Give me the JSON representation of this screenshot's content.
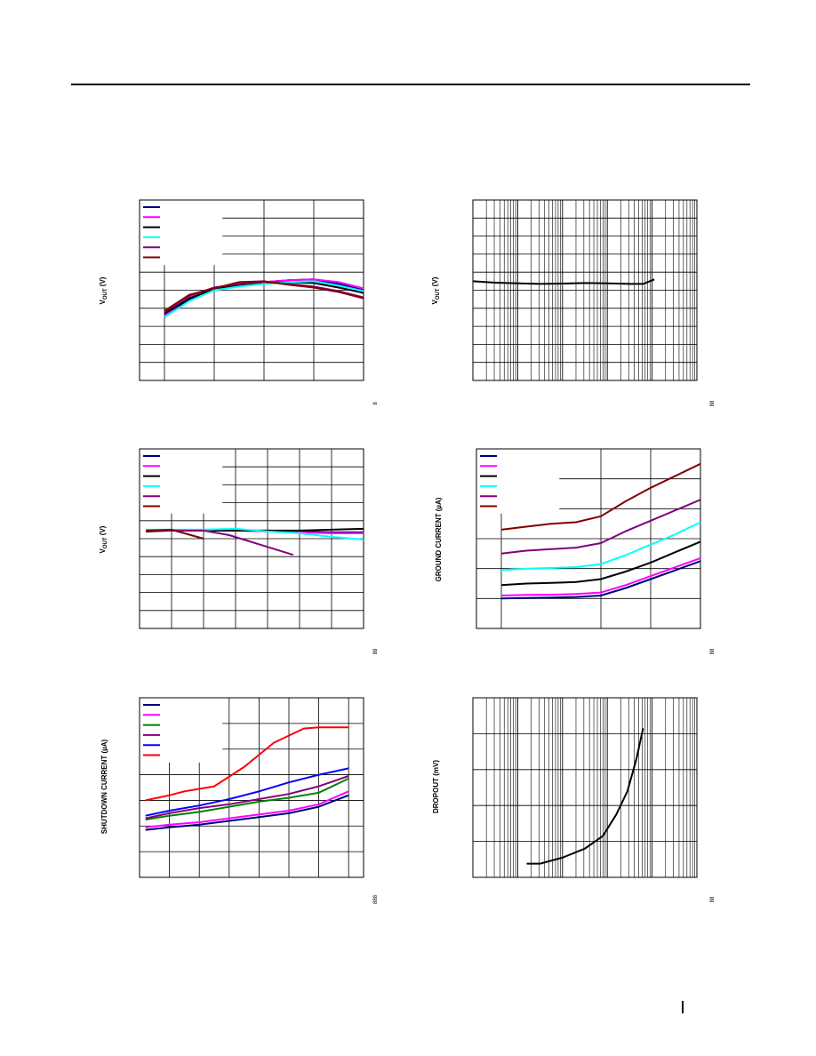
{
  "page": {
    "header_rule": true
  },
  "chart_data": [
    {
      "id": "c1",
      "type": "line",
      "title": "",
      "xlabel": "",
      "ylabel": "VOUT (V)",
      "ylabel_main": "V",
      "ylabel_sub": "OUT",
      "ylabel_unit": " (V)",
      "corner_note": "8",
      "xlim": [
        0,
        4.5
      ],
      "ylim": [
        0,
        10
      ],
      "grid": true,
      "x_scale": "linear",
      "xticks": [
        0.5,
        1.5,
        2.5,
        3.5,
        4.5
      ],
      "yticks": [
        1,
        2,
        3,
        4,
        5,
        6,
        7,
        8,
        9
      ],
      "legend_position": "top-left",
      "series": [
        {
          "name": "",
          "color": "#000080",
          "x": [
            0.5,
            1,
            1.5,
            2,
            2.5,
            3,
            3.5,
            4,
            4.5
          ],
          "y": [
            3.5,
            4.5,
            5.1,
            5.3,
            5.45,
            5.55,
            5.6,
            5.35,
            5.0
          ]
        },
        {
          "name": "",
          "color": "#ff00ff",
          "x": [
            0.5,
            1,
            1.5,
            2,
            2.5,
            3,
            3.5,
            4,
            4.5
          ],
          "y": [
            3.6,
            4.6,
            5.15,
            5.35,
            5.45,
            5.55,
            5.6,
            5.45,
            5.1
          ]
        },
        {
          "name": "",
          "color": "#000000",
          "x": [
            0.5,
            1,
            1.5,
            2,
            2.5,
            3,
            3.5,
            4,
            4.5
          ],
          "y": [
            3.7,
            4.55,
            5.05,
            5.3,
            5.4,
            5.45,
            5.4,
            5.15,
            4.85
          ]
        },
        {
          "name": "",
          "color": "#00ffff",
          "x": [
            0.5,
            1,
            1.5,
            2,
            2.5,
            3,
            3.5,
            4,
            4.5
          ],
          "y": [
            3.5,
            4.4,
            5.0,
            5.2,
            5.35,
            5.45,
            5.5,
            5.25,
            4.95
          ]
        },
        {
          "name": "",
          "color": "#800080",
          "x": [
            0.5,
            1,
            1.5,
            2,
            2.5,
            3,
            3.5,
            4,
            4.5
          ],
          "y": [
            3.8,
            4.7,
            5.15,
            5.35,
            5.45,
            5.35,
            5.2,
            4.95,
            4.6
          ]
        },
        {
          "name": "",
          "color": "#800000",
          "x": [
            0.5,
            1,
            1.5,
            2,
            2.5,
            3,
            3.5,
            4,
            4.5
          ],
          "y": [
            3.85,
            4.75,
            5.1,
            5.45,
            5.5,
            5.3,
            5.15,
            4.9,
            4.55
          ]
        }
      ]
    },
    {
      "id": "c2",
      "type": "line",
      "title": "",
      "xlabel": "",
      "ylabel": "VOUT (V)",
      "ylabel_main": "V",
      "ylabel_sub": "OUT",
      "ylabel_unit": " (V)",
      "corner_note": "88",
      "xlim": [
        0,
        5
      ],
      "ylim": [
        0,
        10
      ],
      "grid": true,
      "x_scale": "log",
      "legend_position": "",
      "series": [
        {
          "name": "",
          "color": "#000000",
          "x": [
            0,
            0.5,
            1,
            1.5,
            2,
            2.5,
            3,
            3.5,
            3.8,
            4.05
          ],
          "y": [
            5.5,
            5.42,
            5.38,
            5.35,
            5.37,
            5.4,
            5.38,
            5.35,
            5.35,
            5.6
          ]
        }
      ]
    },
    {
      "id": "c3",
      "type": "line",
      "title": "",
      "xlabel": "",
      "ylabel": "VOUT (V)",
      "ylabel_main": "V",
      "ylabel_sub": "OUT",
      "ylabel_unit": " (V)",
      "corner_note": "88",
      "xlim": [
        0,
        7
      ],
      "ylim": [
        0,
        10
      ],
      "grid": true,
      "x_scale": "linear",
      "xticks": [
        1,
        2,
        3,
        4,
        5,
        6
      ],
      "yticks": [
        1,
        2,
        3,
        4,
        5,
        6,
        7,
        8,
        9
      ],
      "legend_position": "top-left",
      "series": [
        {
          "name": "",
          "color": "#000080",
          "x": [
            0.2,
            1,
            2,
            3,
            4,
            5,
            6,
            7
          ],
          "y": [
            5.45,
            5.45,
            5.45,
            5.45,
            5.45,
            5.4,
            5.35,
            5.35
          ]
        },
        {
          "name": "",
          "color": "#ff00ff",
          "x": [
            0.2,
            1,
            2,
            3,
            4,
            5,
            6,
            7
          ],
          "y": [
            5.4,
            5.45,
            5.45,
            5.45,
            5.4,
            5.35,
            5.3,
            5.3
          ]
        },
        {
          "name": "",
          "color": "#000000",
          "x": [
            0.2,
            1,
            2,
            3,
            4,
            5,
            6,
            7
          ],
          "y": [
            5.4,
            5.45,
            5.45,
            5.45,
            5.45,
            5.45,
            5.5,
            5.55
          ]
        },
        {
          "name": "",
          "color": "#00ffff",
          "x": [
            0.2,
            1,
            2,
            3,
            4,
            5,
            6,
            7
          ],
          "y": [
            5.5,
            5.5,
            5.5,
            5.55,
            5.4,
            5.3,
            5.1,
            4.95
          ]
        },
        {
          "name": "",
          "color": "#800080",
          "x": [
            0.2,
            1,
            2,
            2.8,
            3.8,
            4.8
          ],
          "y": [
            5.45,
            5.45,
            5.45,
            5.2,
            4.65,
            4.1
          ]
        },
        {
          "name": "",
          "color": "#800000",
          "x": [
            0.2,
            1,
            2
          ],
          "y": [
            5.45,
            5.5,
            5.0
          ]
        }
      ]
    },
    {
      "id": "c4",
      "type": "line",
      "title": "",
      "xlabel": "",
      "ylabel": "GROUND CURRENT (µA)",
      "corner_note": "88",
      "xlim": [
        0,
        4.5
      ],
      "ylim": [
        0,
        6
      ],
      "grid": true,
      "x_scale": "linear",
      "xticks": [
        0.5,
        2.5,
        3.5
      ],
      "yticks": [
        1,
        2,
        3,
        4,
        5
      ],
      "legend_position": "top-left",
      "series": [
        {
          "name": "",
          "color": "#000080",
          "x": [
            0.5,
            1,
            1.5,
            2,
            2.5,
            3,
            3.5,
            4,
            4.5
          ],
          "y": [
            1.0,
            1.02,
            1.03,
            1.05,
            1.1,
            1.35,
            1.65,
            1.95,
            2.25
          ]
        },
        {
          "name": "",
          "color": "#ff00ff",
          "x": [
            0.5,
            1,
            1.5,
            2,
            2.5,
            3,
            3.5,
            4,
            4.5
          ],
          "y": [
            1.1,
            1.12,
            1.13,
            1.15,
            1.2,
            1.45,
            1.75,
            2.05,
            2.35
          ]
        },
        {
          "name": "",
          "color": "#000000",
          "x": [
            0.5,
            1,
            1.5,
            2,
            2.5,
            3,
            3.5,
            4,
            4.5
          ],
          "y": [
            1.45,
            1.5,
            1.52,
            1.55,
            1.65,
            1.9,
            2.2,
            2.55,
            2.9
          ]
        },
        {
          "name": "",
          "color": "#00ffff",
          "x": [
            0.5,
            1,
            1.5,
            2,
            2.5,
            3,
            3.5,
            4,
            4.5
          ],
          "y": [
            1.95,
            2.0,
            2.02,
            2.05,
            2.15,
            2.45,
            2.8,
            3.15,
            3.55
          ]
        },
        {
          "name": "",
          "color": "#800080",
          "x": [
            0.5,
            1,
            1.5,
            2,
            2.5,
            3,
            3.5,
            4,
            4.5
          ],
          "y": [
            2.5,
            2.6,
            2.65,
            2.7,
            2.85,
            3.25,
            3.6,
            3.95,
            4.3
          ]
        },
        {
          "name": "",
          "color": "#800000",
          "x": [
            0.5,
            1,
            1.5,
            2,
            2.5,
            3,
            3.5,
            4,
            4.5
          ],
          "y": [
            3.3,
            3.4,
            3.5,
            3.55,
            3.75,
            4.25,
            4.7,
            5.1,
            5.5
          ]
        }
      ]
    },
    {
      "id": "c5",
      "type": "line",
      "title": "",
      "xlabel": "",
      "ylabel": "SHUTDOWN CURRENT (µA)",
      "corner_note": "888",
      "xlim": [
        0,
        7.5
      ],
      "ylim": [
        0,
        7
      ],
      "grid": true,
      "x_scale": "linear",
      "xticks": [
        1,
        2,
        3,
        4,
        5,
        6,
        7
      ],
      "yticks": [
        1,
        2,
        3,
        4,
        5,
        6
      ],
      "legend_position": "top-left",
      "series": [
        {
          "name": "",
          "color": "#000080",
          "x": [
            0.2,
            1,
            2,
            3,
            4,
            5,
            6,
            7
          ],
          "y": [
            1.85,
            1.95,
            2.05,
            2.2,
            2.35,
            2.5,
            2.75,
            3.2
          ]
        },
        {
          "name": "",
          "color": "#ff00ff",
          "x": [
            0.2,
            1,
            2,
            3,
            4,
            5,
            6,
            7
          ],
          "y": [
            1.95,
            2.05,
            2.15,
            2.3,
            2.45,
            2.6,
            2.85,
            3.35
          ]
        },
        {
          "name": "",
          "color": "#008000",
          "x": [
            0.2,
            1,
            2,
            3,
            4,
            5,
            6,
            7
          ],
          "y": [
            2.25,
            2.4,
            2.55,
            2.75,
            2.95,
            3.1,
            3.3,
            3.85
          ]
        },
        {
          "name": "",
          "color": "#800080",
          "x": [
            0.2,
            1,
            2,
            3,
            4,
            5,
            6,
            7
          ],
          "y": [
            2.3,
            2.5,
            2.7,
            2.85,
            3.05,
            3.25,
            3.55,
            3.95
          ]
        },
        {
          "name": "",
          "color": "#0000ff",
          "x": [
            0.2,
            1,
            2,
            3,
            4,
            5,
            6,
            7
          ],
          "y": [
            2.4,
            2.6,
            2.8,
            3.05,
            3.35,
            3.7,
            4.0,
            4.25
          ]
        },
        {
          "name": "",
          "color": "#ff0000",
          "x": [
            0.2,
            1,
            1.5,
            2.5,
            3.5,
            4.5,
            5.5,
            6,
            7
          ],
          "y": [
            3.0,
            3.2,
            3.35,
            3.55,
            4.3,
            5.25,
            5.8,
            5.85,
            5.85
          ]
        }
      ]
    },
    {
      "id": "c6",
      "type": "line",
      "title": "",
      "xlabel": "",
      "ylabel": "DROPOUT (mV)",
      "corner_note": "88",
      "xlim": [
        0,
        5
      ],
      "ylim": [
        0,
        5
      ],
      "grid": true,
      "x_scale": "log",
      "legend_position": "",
      "series": [
        {
          "name": "",
          "color": "#000000",
          "x": [
            1.2,
            1.5,
            2.0,
            2.5,
            2.9,
            3.2,
            3.45,
            3.65,
            3.8
          ],
          "y": [
            0.38,
            0.38,
            0.55,
            0.8,
            1.15,
            1.75,
            2.4,
            3.3,
            4.15
          ]
        }
      ]
    }
  ]
}
